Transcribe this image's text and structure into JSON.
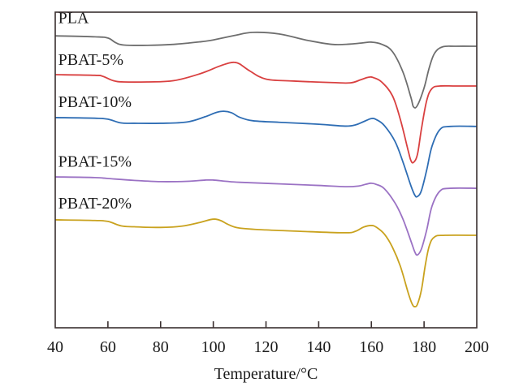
{
  "chart_data": {
    "type": "line",
    "title": "",
    "xlabel": "Temperature/°C",
    "ylabel": "",
    "xlim": [
      40,
      200
    ],
    "ylim": [
      0,
      100
    ],
    "y_units": "arbitrary (relative heat flow, stacked curves)",
    "grid": false,
    "legend": "inline labels above each curve",
    "x_ticks": [
      40,
      60,
      80,
      100,
      120,
      140,
      160,
      180,
      200
    ],
    "x_tick_labels": [
      "40",
      "60",
      "80",
      "100",
      "120",
      "140",
      "160",
      "180",
      "200"
    ],
    "series": [
      {
        "name": "PLA",
        "color": "#6e6e6e",
        "label_pos": [
          40.5,
          97
        ],
        "x": [
          40,
          55,
          60,
          63,
          66,
          75,
          85,
          95,
          100,
          108,
          115,
          125,
          135,
          145,
          152,
          157,
          160,
          164,
          168,
          172,
          175,
          176,
          177.5,
          180,
          182,
          184,
          187,
          192,
          200
        ],
        "y": [
          92.5,
          92.2,
          91.8,
          90.3,
          89.6,
          89.5,
          89.8,
          90.6,
          91.2,
          92.6,
          93.6,
          93.1,
          91.2,
          89.8,
          89.9,
          90.3,
          90.5,
          89.8,
          87.5,
          81,
          73,
          70,
          70.5,
          76,
          82.5,
          87,
          89,
          89.2,
          89.2
        ]
      },
      {
        "name": "PBAT-5%",
        "color": "#d94040",
        "label_pos": [
          40.5,
          83.8
        ],
        "x": [
          40,
          55,
          58,
          62,
          66,
          75,
          85,
          95,
          102,
          106,
          108,
          110,
          114,
          120,
          130,
          145,
          152,
          156,
          159,
          161,
          164,
          168,
          171,
          174,
          175,
          176,
          177.5,
          179,
          181,
          183,
          186,
          192,
          200
        ],
        "y": [
          80.2,
          80,
          79.7,
          78.3,
          77.9,
          77.9,
          78.3,
          80.5,
          82.8,
          83.9,
          84.1,
          83.6,
          81.3,
          78.8,
          78.2,
          77.7,
          77.6,
          78.6,
          79.4,
          79.2,
          77.8,
          73.5,
          66,
          56,
          53,
          52.4,
          55,
          63,
          72,
          75.8,
          76.6,
          76.6,
          76.6
        ]
      },
      {
        "name": "PBAT-10%",
        "color": "#2e6db4",
        "label_pos": [
          40.5,
          70.4
        ],
        "x": [
          40,
          55,
          60,
          65,
          70,
          80,
          90,
          97,
          101,
          104,
          107,
          110,
          115,
          125,
          140,
          150,
          154,
          157,
          160,
          162,
          165,
          169,
          172,
          175,
          176.5,
          177.5,
          179,
          181,
          183,
          186,
          190,
          200
        ],
        "y": [
          66.6,
          66.4,
          66.1,
          64.9,
          64.8,
          64.8,
          65.2,
          66.9,
          68.2,
          68.6,
          68.1,
          66.7,
          65.6,
          65.1,
          64.5,
          63.9,
          64.3,
          65.3,
          66.3,
          65.9,
          64,
          59,
          52.5,
          45,
          42,
          41.6,
          43.5,
          50,
          57.5,
          62.8,
          63.8,
          63.8
        ]
      },
      {
        "name": "PBAT-15%",
        "color": "#9b72c4",
        "label_pos": [
          40.5,
          51.5
        ],
        "x": [
          40,
          55,
          60,
          70,
          80,
          90,
          97,
          100,
          105,
          110,
          125,
          140,
          150,
          155,
          158,
          160,
          162,
          165,
          169,
          172,
          175,
          176.5,
          177.5,
          179,
          181,
          183,
          186,
          190,
          200
        ],
        "y": [
          47.8,
          47.6,
          47.3,
          46.7,
          46.3,
          46.4,
          46.8,
          46.8,
          46.4,
          46.1,
          45.6,
          45.1,
          44.7,
          44.9,
          45.5,
          45.8,
          45.4,
          44,
          39.5,
          34.4,
          27.5,
          24,
          23.1,
          25,
          31,
          38.5,
          43.3,
          44.2,
          44.2
        ]
      },
      {
        "name": "PBAT-20%",
        "color": "#c9a21e",
        "label_pos": [
          40.5,
          38.3
        ],
        "x": [
          40,
          55,
          60,
          65,
          70,
          80,
          88,
          95,
          99,
          101,
          103,
          106,
          110,
          120,
          135,
          150,
          154,
          157,
          160,
          162,
          165,
          168,
          171,
          174,
          175.5,
          176.5,
          177.5,
          179,
          180.5,
          182,
          184,
          188,
          200
        ],
        "y": [
          34.2,
          34,
          33.7,
          32.3,
          32,
          31.8,
          32.2,
          33.4,
          34.3,
          34.4,
          33.9,
          32.6,
          31.6,
          31,
          30.5,
          30.1,
          30.6,
          31.9,
          32.4,
          31.8,
          29.6,
          25.5,
          19.5,
          11,
          7.5,
          6.7,
          7.5,
          12,
          20,
          26,
          28.8,
          29.3,
          29.3
        ]
      }
    ]
  }
}
